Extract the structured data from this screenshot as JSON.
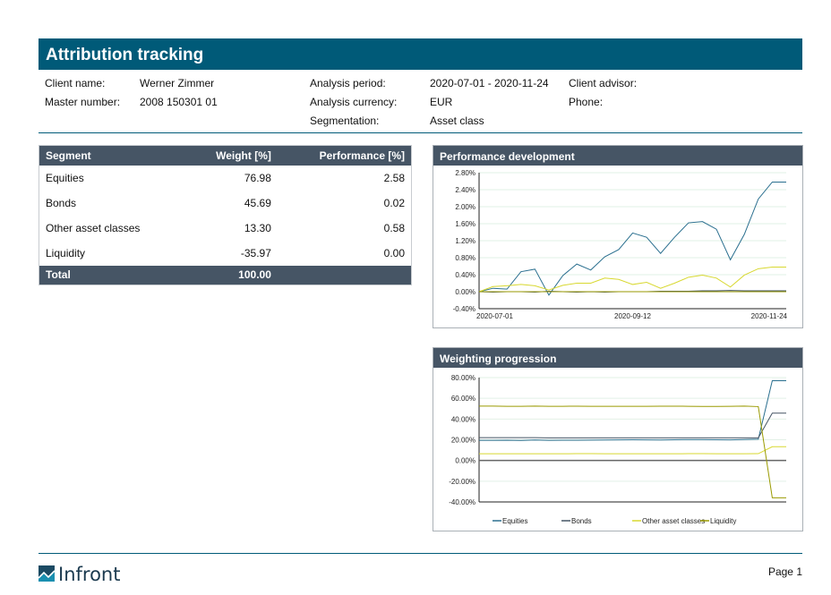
{
  "title": "Attribution tracking",
  "info": {
    "client_name_label": "Client name:",
    "client_name": "Werner Zimmer",
    "master_number_label": "Master number:",
    "master_number": "2008 150301 01",
    "analysis_period_label": "Analysis period:",
    "analysis_period": "2020-07-01 - 2020-11-24",
    "analysis_currency_label": "Analysis currency:",
    "analysis_currency": "EUR",
    "segmentation_label": "Segmentation:",
    "segmentation": "Asset class",
    "client_advisor_label": "Client advisor:",
    "phone_label": "Phone:"
  },
  "table": {
    "headers": [
      "Segment",
      "Weight [%]",
      "Performance [%]"
    ],
    "rows": [
      [
        "Equities",
        "76.98",
        "2.58"
      ],
      [
        "Bonds",
        "45.69",
        "0.02"
      ],
      [
        "Other asset classes",
        "13.30",
        "0.58"
      ],
      [
        "Liquidity",
        "-35.97",
        "0.00"
      ]
    ],
    "total": [
      "Total",
      "100.00",
      ""
    ]
  },
  "chart_data": [
    {
      "type": "line",
      "title": "Performance development",
      "ylim": [
        -0.4,
        2.8
      ],
      "yticks": [
        "2.80%",
        "2.40%",
        "2.00%",
        "1.60%",
        "1.20%",
        "0.80%",
        "0.40%",
        "0.00%",
        "-0.40%"
      ],
      "xticks": [
        "2020-07-01",
        "2020-09-12",
        "2020-11-24"
      ],
      "grid": true,
      "series": [
        {
          "key": "Equities",
          "color": "#2a6f8f",
          "values": [
            0,
            0.08,
            0.06,
            0.47,
            0.53,
            -0.08,
            0.38,
            0.65,
            0.51,
            0.82,
            0.99,
            1.38,
            1.28,
            0.9,
            1.28,
            1.62,
            1.65,
            1.47,
            0.75,
            1.35,
            2.18,
            2.58,
            2.58
          ]
        },
        {
          "key": "Bonds",
          "color": "#465565",
          "values": [
            0,
            -0.01,
            0,
            0,
            -0.01,
            0.01,
            0,
            -0.01,
            0,
            -0.01,
            0,
            0,
            0,
            0.01,
            0.01,
            0.01,
            0.02,
            0.02,
            0.03,
            0.02,
            0.02,
            0.02,
            0.02
          ]
        },
        {
          "key": "Other asset classes",
          "color": "#d8d830",
          "values": [
            0,
            0.12,
            0.14,
            0.17,
            0.14,
            0.04,
            0.15,
            0.2,
            0.2,
            0.32,
            0.29,
            0.17,
            0.22,
            0.08,
            0.2,
            0.34,
            0.39,
            0.32,
            0.11,
            0.39,
            0.54,
            0.58,
            0.58
          ]
        },
        {
          "key": "Liquidity",
          "color": "#9a9a00",
          "values": [
            0,
            0,
            0,
            0,
            0,
            0,
            0,
            0,
            0,
            0,
            0,
            0,
            0,
            0,
            0,
            0,
            0,
            0,
            0,
            0,
            0,
            0,
            0
          ]
        }
      ]
    },
    {
      "type": "line",
      "title": "Weighting progression",
      "ylim": [
        -40,
        80
      ],
      "yticks": [
        "80.00%",
        "60.00%",
        "40.00%",
        "20.00%",
        "0.00%",
        "-20.00%",
        "-40.00%"
      ],
      "grid": true,
      "legend": "bottom",
      "legend_entries": [
        "Equities",
        "Bonds",
        "Other asset classes",
        "Liquidity"
      ],
      "series": [
        {
          "name": "Equities",
          "color": "#2a6f8f",
          "values": [
            19.5,
            19.5,
            19.6,
            19.4,
            19.8,
            19.5,
            19.6,
            19.6,
            19.7,
            19.8,
            19.9,
            20,
            19.9,
            19.8,
            20,
            20.1,
            20.1,
            20,
            19.9,
            20.2,
            20.5,
            76.98,
            76.98
          ]
        },
        {
          "name": "Bonds",
          "color": "#465565",
          "values": [
            22,
            22,
            22,
            22,
            22,
            21.8,
            21.8,
            21.8,
            21.8,
            21.8,
            21.8,
            21.8,
            21.8,
            21.8,
            21.8,
            21.8,
            21.8,
            21.8,
            21.8,
            21.8,
            21.8,
            45.69,
            45.69
          ]
        },
        {
          "name": "Other asset classes",
          "color": "#d8d830",
          "values": [
            6.5,
            6.5,
            6.5,
            6.5,
            6.5,
            6.5,
            6.5,
            6.6,
            6.6,
            6.5,
            6.5,
            6.5,
            6.5,
            6.5,
            6.5,
            6.6,
            6.6,
            6.5,
            6.5,
            6.5,
            6.6,
            13.3,
            13.3
          ]
        },
        {
          "name": "Liquidity",
          "color": "#9a9a00",
          "values": [
            52.5,
            52.5,
            52.3,
            52.3,
            52.5,
            52.3,
            52.3,
            52.4,
            52.3,
            52.3,
            52.3,
            52.3,
            52.3,
            52.4,
            52.4,
            52.3,
            52.2,
            52.2,
            52.3,
            52.5,
            52,
            -35.97,
            -35.97
          ]
        }
      ]
    }
  ],
  "footer": {
    "logo_text": "Infront",
    "page": "Page 1"
  }
}
